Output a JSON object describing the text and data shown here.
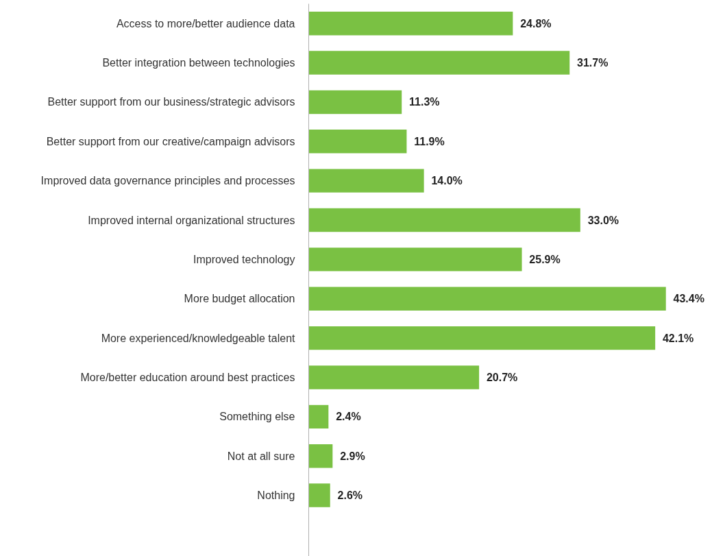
{
  "chart_data": {
    "type": "bar",
    "orientation": "horizontal",
    "tick_labels": "y",
    "grid": false,
    "value_labels": [
      "24.8%",
      "31.7%",
      "11.3%",
      "11.9%",
      "14.0%",
      "33.0%",
      "25.9%",
      "43.4%",
      "42.1%",
      "20.7%",
      "2.4%",
      "2.9%",
      "2.6%"
    ],
    "categories": [
      "Access to more/better audience data",
      "Better integration between technologies",
      "Better support from our business/strategic advisors",
      "Better support from our creative/campaign advisors",
      "Improved data governance principles and processes",
      "Improved internal organizational structures",
      "Improved technology",
      "More budget allocation",
      "More experienced/knowledgeable talent",
      "More/better education around best practices",
      "Something else",
      "Not at all sure",
      "Nothing"
    ],
    "values": [
      24.8,
      31.7,
      11.3,
      11.9,
      14.0,
      33.0,
      25.9,
      43.4,
      42.1,
      20.7,
      2.4,
      2.9,
      2.6
    ],
    "color": "#7ac143"
  }
}
